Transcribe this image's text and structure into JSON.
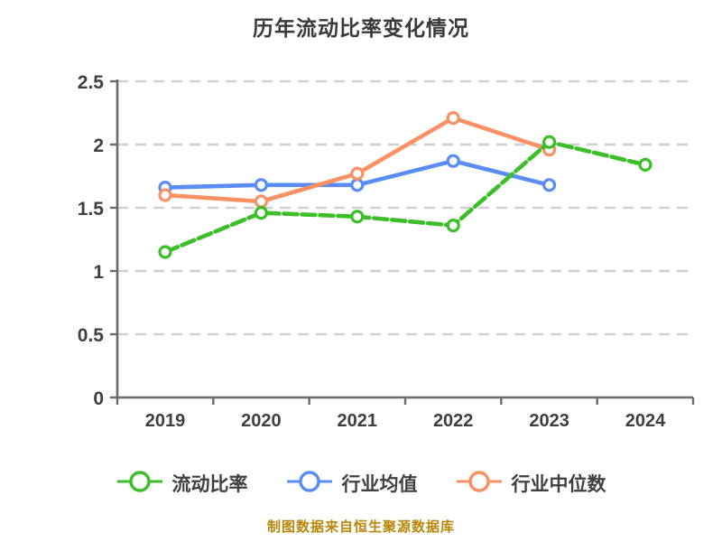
{
  "chart_data": {
    "type": "line",
    "title": "历年流动比率变化情况",
    "x": [
      "2019",
      "2020",
      "2021",
      "2022",
      "2023",
      "2024"
    ],
    "series": [
      {
        "name": "流动比率",
        "color": "#3cbe28",
        "line_style": "dashed",
        "values": [
          1.15,
          1.46,
          1.43,
          1.36,
          2.02,
          1.84
        ]
      },
      {
        "name": "行业均值",
        "color": "#5a8cf5",
        "line_style": "solid",
        "values": [
          1.66,
          1.68,
          1.68,
          1.87,
          1.68,
          null
        ]
      },
      {
        "name": "行业中位数",
        "color": "#fa9164",
        "line_style": "solid",
        "values": [
          1.6,
          1.55,
          1.77,
          2.21,
          1.96,
          null
        ]
      }
    ],
    "ylim": [
      0,
      2.5
    ],
    "yticks": [
      0,
      0.5,
      1,
      1.5,
      2,
      2.5
    ],
    "grid": "horizontal-dashed",
    "legend_position": "bottom",
    "marker": "circle-white-fill",
    "footer": "制图数据来自恒生聚源数据库"
  },
  "colors": {
    "background": "#ffffff",
    "title_text": "#3a3a3a",
    "axis_line": "#6b6b6b",
    "tick_label": "#3f3f3f",
    "gridline": "#cfcfcf",
    "legend_text": "#404040",
    "footer_text": "#b8860b"
  }
}
